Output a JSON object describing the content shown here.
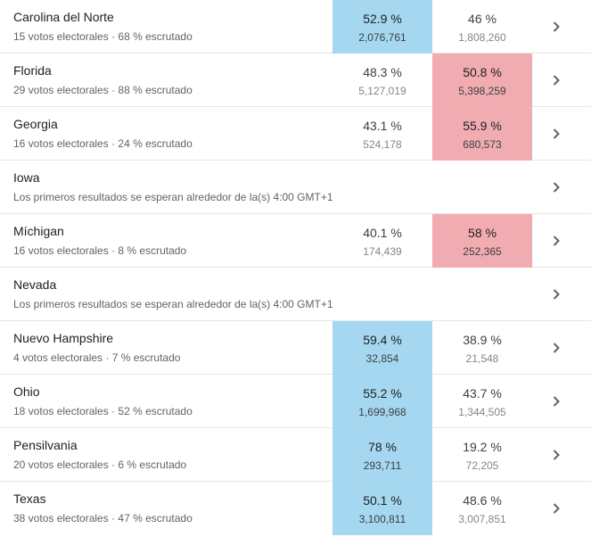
{
  "rows": [
    {
      "state": "Carolina del Norte",
      "subtitle": "15 votos electorales · 68 % escrutado",
      "has_results": true,
      "winner": "c1",
      "c1": {
        "pct": "52.9 %",
        "votes": "2,076,761"
      },
      "c2": {
        "pct": "46 %",
        "votes": "1,808,260"
      }
    },
    {
      "state": "Florida",
      "subtitle": "29 votos electorales · 88 % escrutado",
      "has_results": true,
      "winner": "c2",
      "c1": {
        "pct": "48.3 %",
        "votes": "5,127,019"
      },
      "c2": {
        "pct": "50.8 %",
        "votes": "5,398,259"
      }
    },
    {
      "state": "Georgia",
      "subtitle": "16 votos electorales · 24 % escrutado",
      "has_results": true,
      "winner": "c2",
      "c1": {
        "pct": "43.1 %",
        "votes": "524,178"
      },
      "c2": {
        "pct": "55.9 %",
        "votes": "680,573"
      }
    },
    {
      "state": "Iowa",
      "subtitle": "Los primeros resultados se esperan alrededor de la(s) 4:00 GMT+1",
      "has_results": false
    },
    {
      "state": "Míchigan",
      "subtitle": "16 votos electorales · 8 % escrutado",
      "has_results": true,
      "winner": "c2",
      "c1": {
        "pct": "40.1 %",
        "votes": "174,439"
      },
      "c2": {
        "pct": "58 %",
        "votes": "252,365"
      }
    },
    {
      "state": "Nevada",
      "subtitle": "Los primeros resultados se esperan alrededor de la(s) 4:00 GMT+1",
      "has_results": false
    },
    {
      "state": "Nuevo Hampshire",
      "subtitle": "4 votos electorales · 7 % escrutado",
      "has_results": true,
      "winner": "c1",
      "c1": {
        "pct": "59.4 %",
        "votes": "32,854"
      },
      "c2": {
        "pct": "38.9 %",
        "votes": "21,548"
      }
    },
    {
      "state": "Ohio",
      "subtitle": "18 votos electorales · 52 % escrutado",
      "has_results": true,
      "winner": "c1",
      "c1": {
        "pct": "55.2 %",
        "votes": "1,699,968"
      },
      "c2": {
        "pct": "43.7 %",
        "votes": "1,344,505"
      }
    },
    {
      "state": "Pensilvania",
      "subtitle": "20 votos electorales · 6 % escrutado",
      "has_results": true,
      "winner": "c1",
      "c1": {
        "pct": "78 %",
        "votes": "293,711"
      },
      "c2": {
        "pct": "19.2 %",
        "votes": "72,205"
      }
    },
    {
      "state": "Texas",
      "subtitle": "38 votos electorales · 47 % escrutado",
      "has_results": true,
      "winner": "c1",
      "c1": {
        "pct": "50.1 %",
        "votes": "3,100,811"
      },
      "c2": {
        "pct": "48.6 %",
        "votes": "3,007,851"
      }
    }
  ],
  "colors": {
    "c1_leading_bg": "#a5d8f0",
    "c2_leading_bg": "#f1acb2"
  },
  "icons": {
    "row_action": "chevron-right-icon"
  }
}
